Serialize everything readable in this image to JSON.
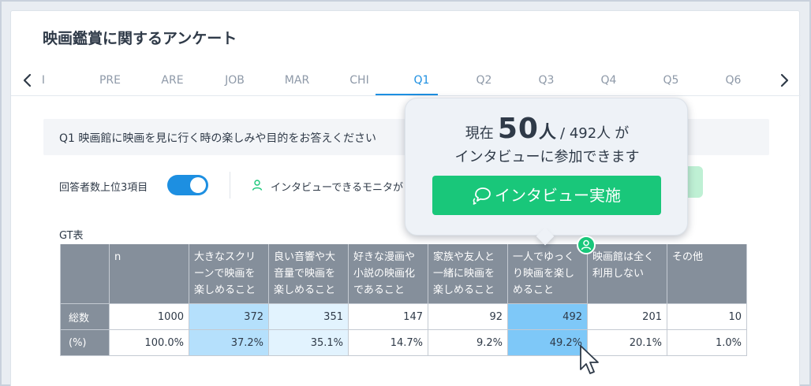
{
  "survey": {
    "title": "映画鑑賞に関するアンケート"
  },
  "tabs": {
    "items": [
      "I",
      "PRE",
      "ARE",
      "JOB",
      "MAR",
      "CHI",
      "Q1",
      "Q2",
      "Q3",
      "Q4",
      "Q5",
      "Q6"
    ],
    "active": "Q1",
    "prev_icon": "chevron-left-icon",
    "next_icon": "chevron-right-icon"
  },
  "question": {
    "text": "Q1 映画館に映画を見に行く時の楽しみや目的をお答えください"
  },
  "filters": {
    "top3_label": "回答者数上位3項目",
    "top3_toggle_on": true,
    "monitor_label": "インタビューできるモニタが"
  },
  "gt_table": {
    "label": "GT表",
    "headers": [
      "n",
      "大きなスクリーンで映画を楽しめること",
      "良い音響や大音量で映画を楽しめること",
      "好きな漫画や小説の映画化であること",
      "家族や友人と一緒に映画を楽しめること",
      "一人でゆっくり映画を楽しめること",
      "映画館は全く利用しない",
      "その他"
    ],
    "header_lines": [
      [
        "n"
      ],
      [
        "大きなスクリ",
        "ーンで映画を",
        "楽しめること"
      ],
      [
        "良い音響や大",
        "音量で映画を",
        "楽しめること"
      ],
      [
        "好きな漫画や",
        "小説の映画化",
        "であること"
      ],
      [
        "家族や友人と",
        "一緒に映画を",
        "楽しめること"
      ],
      [
        "一人でゆっく",
        "り映画を楽し",
        "めること"
      ],
      [
        "映画館は全く",
        "利用しない"
      ],
      [
        "その他"
      ]
    ],
    "rows": [
      {
        "label": "総数",
        "cells": [
          "1000",
          "372",
          "351",
          "147",
          "92",
          "492",
          "201",
          "10"
        ]
      },
      {
        "label": "(%)",
        "cells": [
          "100.0%",
          "37.2%",
          "35.1%",
          "14.7%",
          "9.2%",
          "49.2%",
          "20.1%",
          "1.0%"
        ]
      }
    ],
    "highlights": [
      "none",
      "strong",
      "light",
      "none",
      "none",
      "strongest",
      "none",
      "none"
    ]
  },
  "popover": {
    "prefix": "現在",
    "current_count": "50",
    "current_unit": "人",
    "total": "/ 492人",
    "suffix": "が",
    "line2": "インタビューに参加できます",
    "button_label": "インタビュー実施",
    "button_icon": "chat-bubbles-icon"
  },
  "colors": {
    "accent": "#1d8fe1",
    "green": "#19c77a",
    "header_gray": "#858f9b",
    "highlight_strong": "#b5e0fc",
    "highlight_light": "#e2f3fe",
    "highlight_strongest": "#7ec8f8"
  }
}
